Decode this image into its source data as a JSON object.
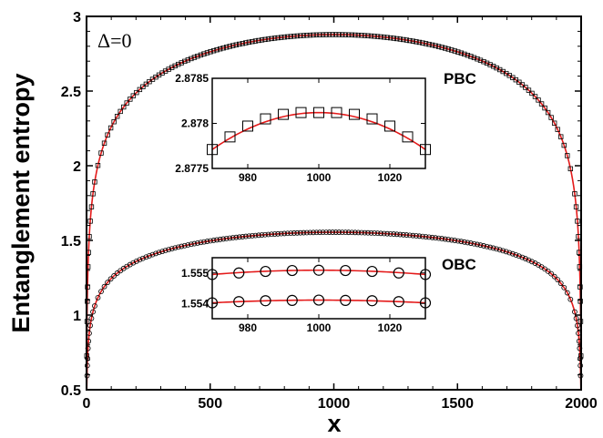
{
  "chart_data": {
    "type": "line",
    "xlabel": "x",
    "ylabel": "Entanglement entropy",
    "xlim": [
      0,
      2000
    ],
    "ylim": [
      0.5,
      3
    ],
    "x_ticks": [
      "0",
      "500",
      "1000",
      "1500",
      "2000"
    ],
    "y_ticks": [
      "0.5",
      "1",
      "1.5",
      "2",
      "2.5",
      "3"
    ],
    "grid": false,
    "parameter_label": "Δ=0",
    "series": [
      {
        "name": "PBC",
        "marker": "square",
        "x": [
          1,
          10,
          25,
          50,
          100,
          200,
          300,
          400,
          500,
          600,
          700,
          800,
          900,
          1000,
          1100,
          1200,
          1300,
          1400,
          1500,
          1600,
          1700,
          1800,
          1900,
          1950,
          1975,
          1990,
          1999
        ],
        "y": [
          0.7,
          1.43,
          1.76,
          2.01,
          2.24,
          2.47,
          2.61,
          2.7,
          2.77,
          2.82,
          2.85,
          2.87,
          2.878,
          2.8782,
          2.878,
          2.87,
          2.85,
          2.82,
          2.77,
          2.7,
          2.61,
          2.47,
          2.24,
          2.01,
          1.76,
          1.43,
          0.7
        ]
      },
      {
        "name": "OBC",
        "marker": "circle",
        "x": [
          1,
          10,
          25,
          50,
          100,
          200,
          300,
          400,
          500,
          600,
          700,
          800,
          900,
          1000,
          1100,
          1200,
          1300,
          1400,
          1500,
          1600,
          1700,
          1800,
          1900,
          1950,
          1975,
          1990,
          1999
        ],
        "y": [
          0.7,
          0.98,
          1.12,
          1.22,
          1.33,
          1.44,
          1.48,
          1.51,
          1.525,
          1.54,
          1.548,
          1.552,
          1.554,
          1.5545,
          1.554,
          1.552,
          1.548,
          1.54,
          1.525,
          1.51,
          1.48,
          1.44,
          1.33,
          1.22,
          1.12,
          0.98,
          0.7
        ]
      }
    ],
    "insets": [
      {
        "series": "PBC",
        "xlim": [
          970,
          1030
        ],
        "ylim": [
          2.8775,
          2.8785
        ],
        "x_ticks": [
          "980",
          "1000",
          "1020"
        ],
        "y_ticks": [
          "2.8775",
          "2.878",
          "2.8785"
        ],
        "points_x": [
          970,
          975,
          980,
          985,
          990,
          995,
          1000,
          1005,
          1010,
          1015,
          1020,
          1025,
          1030
        ],
        "points_y": [
          2.87771,
          2.87785,
          2.87797,
          2.87805,
          2.8781,
          2.87812,
          2.87812,
          2.87812,
          2.8781,
          2.87805,
          2.87797,
          2.87785,
          2.87771
        ]
      },
      {
        "series": "OBC",
        "xlim": [
          970,
          1030
        ],
        "ylim": [
          1.5535,
          1.5555
        ],
        "x_ticks": [
          "980",
          "1000",
          "1020"
        ],
        "y_ticks": [
          "1.554",
          "1.555"
        ],
        "rows": [
          {
            "points_x": [
              970,
              977.5,
              985,
              992.5,
              1000,
              1007.5,
              1015,
              1022.5,
              1030
            ],
            "points_y": [
              1.55495,
              1.555,
              1.55505,
              1.55508,
              1.55509,
              1.55508,
              1.55505,
              1.555,
              1.55495
            ]
          },
          {
            "points_x": [
              970,
              977.5,
              985,
              992.5,
              1000,
              1007.5,
              1015,
              1022.5,
              1030
            ],
            "points_y": [
              1.55402,
              1.55406,
              1.55409,
              1.5541,
              1.55411,
              1.5541,
              1.55409,
              1.55406,
              1.55402
            ]
          }
        ]
      }
    ]
  }
}
